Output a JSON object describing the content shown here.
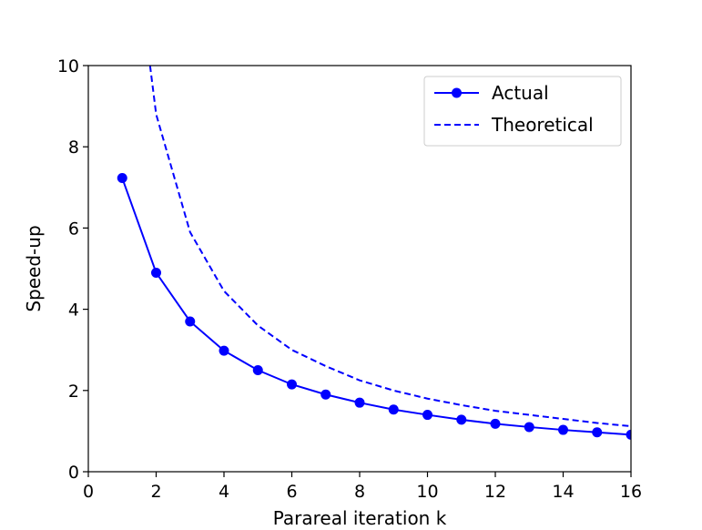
{
  "chart_data": {
    "type": "line",
    "title": "",
    "xlabel": "Parareal iteration k",
    "ylabel": "Speed-up",
    "xlim": [
      0,
      16
    ],
    "ylim": [
      0,
      10
    ],
    "xticks": [
      "0",
      "2",
      "4",
      "6",
      "8",
      "10",
      "12",
      "14",
      "16"
    ],
    "yticks": [
      "0",
      "2",
      "4",
      "6",
      "8",
      "10"
    ],
    "grid": false,
    "legend_position": "top-right",
    "series": [
      {
        "name": "Actual",
        "style": "solid-markers",
        "color": "#0000ff",
        "x": [
          1,
          2,
          3,
          4,
          5,
          6,
          7,
          8,
          9,
          10,
          11,
          12,
          13,
          14,
          15,
          16
        ],
        "y": [
          7.23,
          4.9,
          3.7,
          2.98,
          2.5,
          2.15,
          1.9,
          1.7,
          1.53,
          1.4,
          1.28,
          1.18,
          1.1,
          1.03,
          0.97,
          0.91
        ]
      },
      {
        "name": "Theoretical",
        "style": "dashed",
        "color": "#0000ff",
        "x": [
          1.82,
          2,
          3,
          4,
          5,
          6,
          7,
          8,
          9,
          10,
          11,
          12,
          13,
          14,
          15,
          16
        ],
        "y": [
          10.0,
          8.8,
          5.9,
          4.45,
          3.6,
          3.0,
          2.6,
          2.25,
          2.0,
          1.8,
          1.64,
          1.5,
          1.4,
          1.3,
          1.2,
          1.12
        ]
      }
    ]
  }
}
